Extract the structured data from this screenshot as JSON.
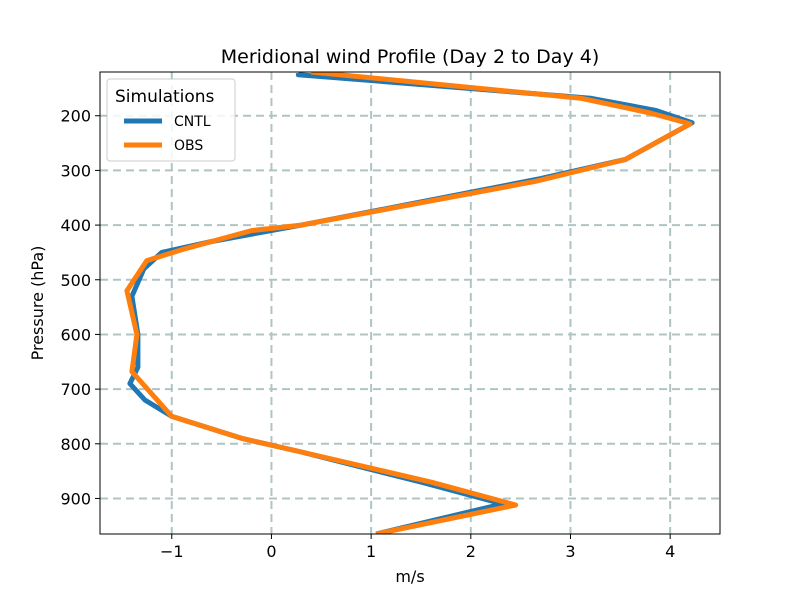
{
  "chart_data": {
    "type": "line",
    "title": "Meridional wind Profile (Day 2 to Day 4)",
    "xlabel": "m/s",
    "ylabel": "Pressure (hPa)",
    "xlim": [
      -1.72,
      4.5
    ],
    "ylim": [
      965,
      120
    ],
    "y_inverted": true,
    "grid": true,
    "x_ticks": [
      -1,
      0,
      1,
      2,
      3,
      4
    ],
    "x_tick_labels": [
      "−1",
      "0",
      "1",
      "2",
      "3",
      "4"
    ],
    "y_ticks": [
      200,
      300,
      400,
      500,
      600,
      700,
      800,
      900
    ],
    "y_tick_labels": [
      "200",
      "300",
      "400",
      "500",
      "600",
      "700",
      "800",
      "900"
    ],
    "legend": {
      "title": "Simulations",
      "location": "top-left"
    },
    "series": [
      {
        "name": "CNTL",
        "color": "#1f77b4",
        "x": [
          1.05,
          2.32,
          1.5,
          0.3,
          -0.3,
          -1.0,
          -1.27,
          -1.42,
          -1.34,
          -1.34,
          -1.4,
          -1.28,
          -1.1,
          -0.6,
          0.3,
          2.7,
          3.55,
          4.22,
          3.85,
          3.2,
          0.27,
          0.27
        ],
        "y": [
          965,
          910,
          870,
          815,
          790,
          750,
          720,
          690,
          660,
          600,
          530,
          480,
          450,
          430,
          400,
          315,
          280,
          213,
          190,
          168,
          125,
          122
        ]
      },
      {
        "name": "OBS",
        "color": "#ff7f0e",
        "x": [
          1.05,
          2.45,
          1.6,
          0.3,
          -0.3,
          -1.0,
          -1.4,
          -1.35,
          -1.45,
          -1.25,
          -0.9,
          -0.2,
          0.3,
          2.65,
          3.55,
          4.2,
          3.8,
          3.1,
          0.4
        ],
        "y": [
          965,
          912,
          870,
          815,
          790,
          750,
          668,
          600,
          520,
          465,
          445,
          410,
          400,
          320,
          280,
          215,
          195,
          168,
          120
        ]
      }
    ]
  }
}
